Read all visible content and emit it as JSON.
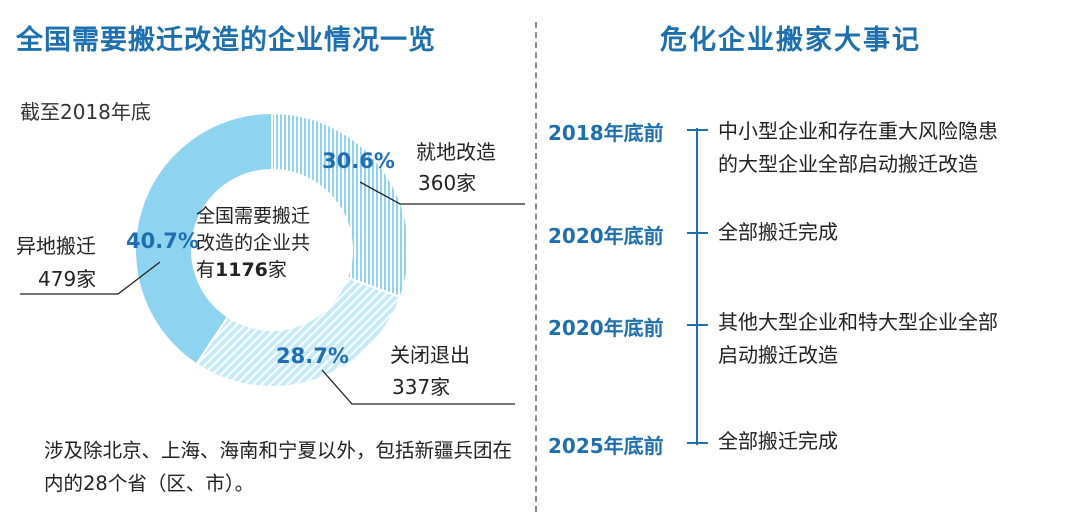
{
  "header": {
    "left_title": "全国需要搬迁改造的企业情况一览",
    "right_title": "危化企业搬家大事记"
  },
  "chart_data": {
    "type": "pie",
    "subtitle": "截至2018年底",
    "center_text_lines": [
      "全国需要搬迁",
      "改造的企业共"
    ],
    "center_total_prefix": "有",
    "center_total": "1176",
    "center_total_suffix": "家",
    "slices": [
      {
        "name": "就地改造",
        "percent": 30.6,
        "percent_label": "30.6%",
        "count_label": "360家",
        "color": "#8ed3f0",
        "pattern": "vertical-lines"
      },
      {
        "name": "关闭退出",
        "percent": 28.7,
        "percent_label": "28.7%",
        "count_label": "337家",
        "color": "#8ed3f0",
        "pattern": "diagonal-hatch"
      },
      {
        "name": "异地搬迁",
        "percent": 40.7,
        "percent_label": "40.7%",
        "count_label": "479家",
        "color": "#8ed3f0",
        "pattern": "solid"
      }
    ],
    "footnote": "涉及除北京、上海、海南和宁夏以外，包括新疆兵团在内的28个省（区、市）。"
  },
  "timeline": {
    "line_color": "#1d6fae",
    "events": [
      {
        "date": "2018年底前",
        "lines": [
          "中小型企业和存在重大风险隐患",
          "的大型企业全部启动搬迁改造"
        ]
      },
      {
        "date": "2020年底前",
        "lines": [
          "全部搬迁完成"
        ]
      },
      {
        "date": "2020年底前",
        "lines": [
          "其他大型企业和特大型企业全部",
          "启动搬迁改造"
        ]
      },
      {
        "date": "2025年底前",
        "lines": [
          "全部搬迁完成"
        ]
      }
    ]
  }
}
